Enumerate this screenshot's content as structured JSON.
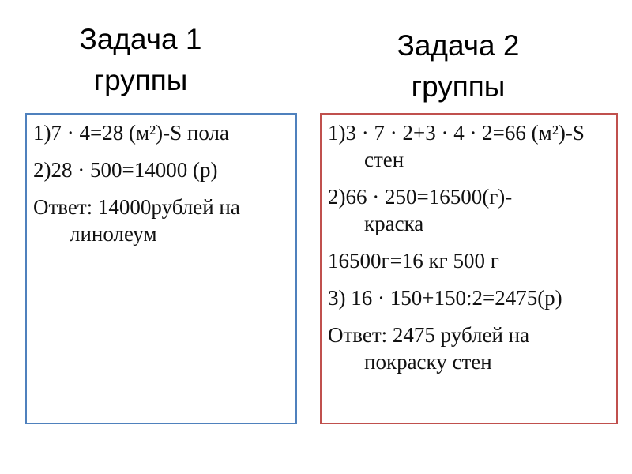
{
  "colors": {
    "box1_border": "#4f81bd",
    "box2_border": "#c0504d"
  },
  "task1": {
    "title_line1": "Задача 1",
    "title_line2": "группы",
    "lines": [
      "1)7 · 4=28 (м²)-S пола",
      "2)28 · 500=14000 (р)",
      "Ответ: 14000рублей на линолеум"
    ]
  },
  "task2": {
    "title_line1": "Задача 2",
    "title_line2": "группы",
    "lines": [
      "1)3 · 7 · 2+3 · 4 · 2=66 (м²)-S стен",
      "2)66 · 250=16500(г)-краска",
      "16500г=16 кг 500 г",
      "3) 16 · 150+150:2=2475(р)",
      "Ответ: 2475 рублей на покраску стен"
    ]
  }
}
